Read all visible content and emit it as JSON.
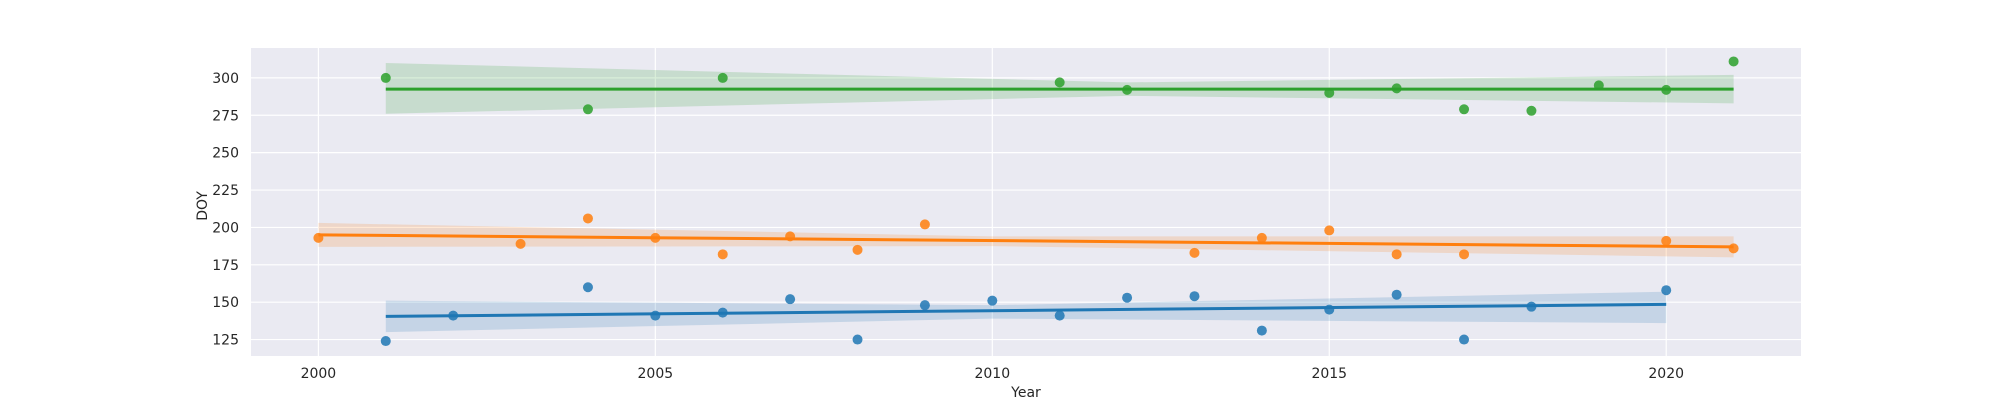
{
  "chart_data": {
    "type": "scatter",
    "title": "",
    "xlabel": "Year",
    "ylabel": "DOY",
    "xlim": [
      1999,
      2022
    ],
    "ylim": [
      114,
      320
    ],
    "x_ticks": [
      2000,
      2005,
      2010,
      2015,
      2020
    ],
    "y_ticks": [
      125,
      150,
      175,
      200,
      225,
      250,
      275,
      300
    ],
    "grid": true,
    "legend": "none",
    "background": "#eaeaf2",
    "series": [
      {
        "color": "#1f77b4",
        "points": [
          [
            2001,
            124
          ],
          [
            2002,
            141
          ],
          [
            2004,
            160
          ],
          [
            2005,
            141
          ],
          [
            2006,
            143
          ],
          [
            2007,
            152
          ],
          [
            2008,
            125
          ],
          [
            2009,
            148
          ],
          [
            2010,
            151
          ],
          [
            2011,
            141
          ],
          [
            2012,
            153
          ],
          [
            2013,
            154
          ],
          [
            2014,
            131
          ],
          [
            2015,
            145
          ],
          [
            2016,
            155
          ],
          [
            2017,
            125
          ],
          [
            2018,
            147
          ],
          [
            2020,
            158
          ]
        ],
        "fit_line": [
          [
            2001,
            140.5
          ],
          [
            2020,
            148.5
          ]
        ],
        "ci_band": [
          [
            2001,
            130,
            151
          ],
          [
            2010,
            139,
            148
          ],
          [
            2020,
            136,
            157
          ]
        ]
      },
      {
        "color": "#ff7f0e",
        "points": [
          [
            2000,
            193
          ],
          [
            2003,
            189
          ],
          [
            2004,
            206
          ],
          [
            2005,
            193
          ],
          [
            2006,
            182
          ],
          [
            2007,
            194
          ],
          [
            2008,
            185
          ],
          [
            2009,
            202
          ],
          [
            2013,
            183
          ],
          [
            2014,
            193
          ],
          [
            2015,
            198
          ],
          [
            2016,
            182
          ],
          [
            2017,
            182
          ],
          [
            2020,
            191
          ],
          [
            2021,
            186
          ]
        ],
        "fit_line": [
          [
            2000,
            195
          ],
          [
            2021,
            187
          ]
        ],
        "ci_band": [
          [
            2000,
            187,
            203
          ],
          [
            2010,
            187.5,
            194
          ],
          [
            2021,
            180,
            194
          ]
        ]
      },
      {
        "color": "#2ca02c",
        "points": [
          [
            2001,
            300
          ],
          [
            2004,
            279
          ],
          [
            2006,
            300
          ],
          [
            2011,
            297
          ],
          [
            2012,
            292
          ],
          [
            2015,
            290
          ],
          [
            2016,
            293
          ],
          [
            2017,
            279
          ],
          [
            2018,
            278
          ],
          [
            2019,
            295
          ],
          [
            2020,
            292
          ],
          [
            2021,
            311
          ]
        ],
        "fit_line": [
          [
            2001,
            292.5
          ],
          [
            2021,
            292.5
          ]
        ],
        "ci_band": [
          [
            2001,
            276,
            310
          ],
          [
            2012,
            288,
            297
          ],
          [
            2021,
            283,
            302
          ]
        ]
      }
    ]
  }
}
